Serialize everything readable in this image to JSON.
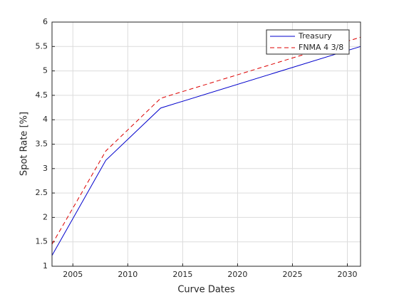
{
  "chart_data": {
    "type": "line",
    "xlabel": "Curve Dates",
    "ylabel": "Spot Rate [%]",
    "x": [
      2003.1,
      2008,
      2013,
      2031.2
    ],
    "series": [
      {
        "name": "Treasury",
        "color": "#0000cc",
        "linestyle": "solid",
        "values": [
          1.22,
          3.17,
          4.24,
          5.5
        ]
      },
      {
        "name": "FNMA 4 3/8",
        "color": "#dd0000",
        "linestyle": "dashed",
        "values": [
          1.45,
          3.36,
          4.44,
          5.69
        ]
      }
    ],
    "xlim": [
      2003.1,
      2031.2
    ],
    "xticks": [
      2005,
      2010,
      2015,
      2020,
      2025,
      2030
    ],
    "ylim": [
      1,
      6
    ],
    "yticks": [
      1,
      1.5,
      2,
      2.5,
      3,
      3.5,
      4,
      4.5,
      5,
      5.5,
      6
    ],
    "grid": true,
    "legend": "northeast"
  }
}
